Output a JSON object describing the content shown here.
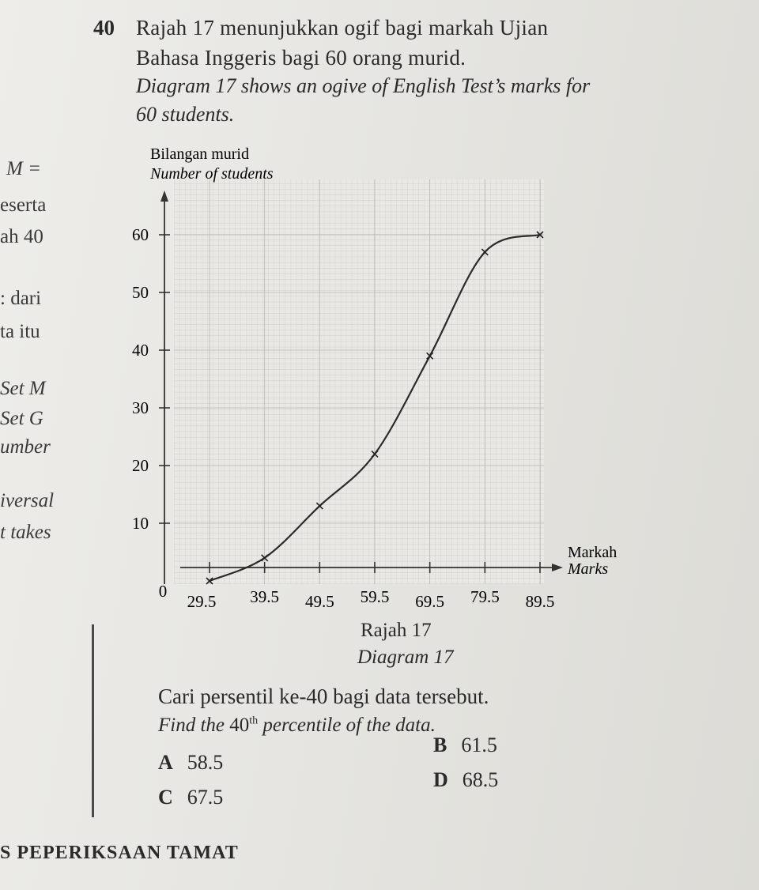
{
  "question": {
    "number": "40",
    "stem_malay_line1": "Rajah 17 menunjukkan ogif bagi markah Ujian",
    "stem_malay_line2": "Bahasa Inggeris bagi 60 orang murid.",
    "stem_english_line1": "Diagram 17 shows an ogive of English Test’s marks for",
    "stem_english_line2": "60 students.",
    "ask_malay": "Cari persentil ke-40 bagi data tersebut.",
    "ask_english_pre": "Find the ",
    "ask_english_num": "40",
    "ask_english_sup": "th",
    "ask_english_post": " percentile of the data.",
    "options": [
      {
        "letter": "A",
        "value": "58.5"
      },
      {
        "letter": "B",
        "value": "61.5"
      },
      {
        "letter": "C",
        "value": "67.5"
      },
      {
        "letter": "D",
        "value": "68.5"
      }
    ]
  },
  "figure": {
    "caption_malay": "Rajah 17",
    "caption_english": "Diagram 17"
  },
  "left_margin_fragments": [
    "M =",
    "eserta",
    "ah 40",
    ": dari",
    "ta  itu",
    "Set  M",
    "Set  G",
    "umber",
    "iversal",
    "t takes"
  ],
  "footer": "S PEPERIKSAAN TAMAT",
  "chart_data": {
    "type": "line",
    "title": "",
    "ylabel_malay": "Bilangan murid",
    "ylabel_english": "Number of students",
    "xlabel_malay": "Markah",
    "xlabel_english": "Marks",
    "origin_label": "0",
    "x_ticks": [
      29.5,
      39.5,
      49.5,
      59.5,
      69.5,
      79.5,
      89.5
    ],
    "y_ticks": [
      10,
      20,
      30,
      40,
      50,
      60
    ],
    "xlim": [
      19.5,
      89.5
    ],
    "ylim": [
      0,
      60
    ],
    "grid": true,
    "series": [
      {
        "x": [
          29.5,
          39.5,
          49.5,
          59.5,
          69.5,
          79.5,
          89.5
        ],
        "y": [
          0,
          4,
          13,
          22,
          39,
          57,
          60
        ]
      }
    ]
  }
}
